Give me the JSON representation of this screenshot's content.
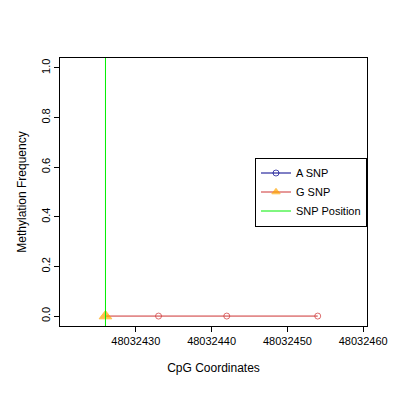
{
  "chart_data": {
    "type": "line",
    "x_label": "CpG Coordinates",
    "y_label": "Methylation Frequency",
    "x": [
      48032426,
      48032433,
      48032442,
      48032454
    ],
    "series": [
      {
        "name": "A SNP",
        "color": "#00008b",
        "values": [
          null,
          null,
          null,
          null
        ]
      },
      {
        "name": "G SNP",
        "color": "#cd3333",
        "marker": "circle-open",
        "values": [
          0,
          0,
          0,
          0
        ],
        "colors": [
          "#ffa500",
          "#cd3333",
          "#cd3333",
          "#cd3333"
        ]
      },
      {
        "name": "SNP Position",
        "color": "#00ee00",
        "type": "vline",
        "x": [
          48032426
        ]
      }
    ],
    "xlim": [
      48032420,
      48032460.5
    ],
    "xticks": [
      48032430,
      48032440,
      48032450,
      48032460
    ],
    "ylim": [
      -0.04,
      1.04
    ],
    "yticks": [
      {
        "value": 0,
        "label": "0.0"
      },
      0.2,
      0.4,
      0.6,
      0.8,
      {
        "value": 1,
        "label": "1.0"
      }
    ],
    "grid": false,
    "legend": "right"
  }
}
